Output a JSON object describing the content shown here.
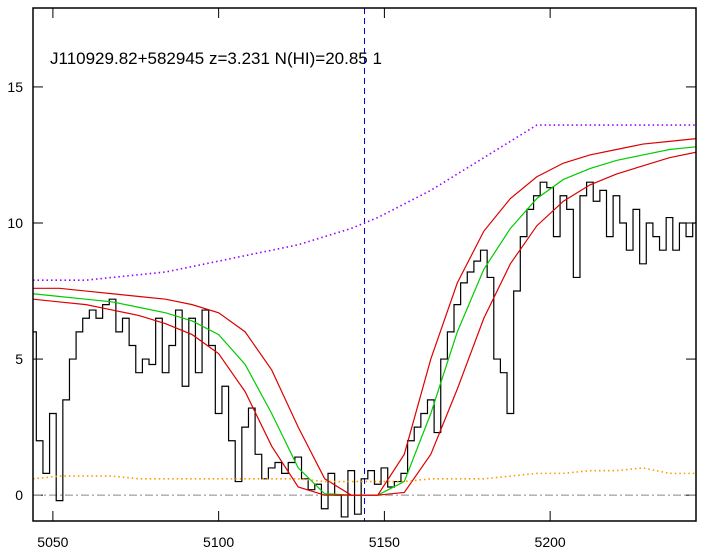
{
  "chart_data": {
    "type": "line",
    "title": "J110929.82+582945 z=3.231 N(HI)=20.85 1",
    "xlim": [
      5044,
      5244
    ],
    "ylim": [
      -0.95,
      17.9
    ],
    "xticks": [
      5050,
      5100,
      5150,
      5200
    ],
    "yticks": [
      0,
      5,
      10,
      15
    ],
    "zero_line": 0,
    "vline": 5144,
    "vline_color": "#0000cc",
    "series": [
      {
        "color": "#000000",
        "style": "step",
        "x": [
          5044,
          5046,
          5048,
          5050,
          5052,
          5054,
          5056,
          5058,
          5060,
          5062,
          5064,
          5066,
          5068,
          5070,
          5072,
          5074,
          5076,
          5078,
          5080,
          5082,
          5084,
          5086,
          5088,
          5090,
          5092,
          5094,
          5096,
          5098,
          5100,
          5102,
          5104,
          5106,
          5108,
          5110,
          5112,
          5114,
          5116,
          5118,
          5120,
          5122,
          5124,
          5126,
          5128,
          5130,
          5132,
          5134,
          5136,
          5138,
          5140,
          5142,
          5144,
          5146,
          5148,
          5150,
          5152,
          5154,
          5156,
          5158,
          5160,
          5162,
          5164,
          5166,
          5168,
          5170,
          5172,
          5174,
          5176,
          5178,
          5180,
          5182,
          5184,
          5186,
          5188,
          5190,
          5192,
          5194,
          5196,
          5198,
          5200,
          5202,
          5204,
          5206,
          5208,
          5210,
          5212,
          5214,
          5216,
          5218,
          5220,
          5222,
          5224,
          5226,
          5228,
          5230,
          5232,
          5234,
          5236,
          5238,
          5240,
          5242,
          5244
        ],
        "values": [
          6.0,
          2.0,
          0.8,
          3.0,
          -0.2,
          3.5,
          5.0,
          6.0,
          6.5,
          6.8,
          6.5,
          7.0,
          7.2,
          6.0,
          6.5,
          5.5,
          4.5,
          5.0,
          4.8,
          6.5,
          4.5,
          5.5,
          6.8,
          4.0,
          6.5,
          4.5,
          6.8,
          5.5,
          3.0,
          4.0,
          2.0,
          0.5,
          2.5,
          3.2,
          1.5,
          0.6,
          1.0,
          1.2,
          0.8,
          1.2,
          1.4,
          0.6,
          0.2,
          0.4,
          -0.5,
          0.8,
          0.0,
          -0.8,
          0.9,
          -0.7,
          0.6,
          0.9,
          0.4,
          1.0,
          0.3,
          0.5,
          0.8,
          2.0,
          2.5,
          3.0,
          3.5,
          2.3,
          5.0,
          6.0,
          7.0,
          7.8,
          8.2,
          8.6,
          9.0,
          8.0,
          5.0,
          4.5,
          3.0,
          7.5,
          9.5,
          10.5,
          11.0,
          11.5,
          11.3,
          9.5,
          11.0,
          10.5,
          8.0,
          11.0,
          11.5,
          10.8,
          11.2,
          9.5,
          11.0,
          10.0,
          9.0,
          10.5,
          8.5,
          10.0,
          9.5,
          9.0,
          10.2,
          9.0,
          10.0,
          9.5,
          10.0
        ]
      },
      {
        "color": "#00cc00",
        "style": "solid",
        "x": [
          5044,
          5052,
          5060,
          5068,
          5076,
          5084,
          5092,
          5100,
          5108,
          5116,
          5124,
          5132,
          5140,
          5148,
          5156,
          5164,
          5172,
          5180,
          5188,
          5196,
          5204,
          5212,
          5220,
          5228,
          5236,
          5244
        ],
        "values": [
          7.4,
          7.3,
          7.2,
          7.1,
          6.9,
          6.7,
          6.4,
          5.9,
          4.8,
          3.0,
          1.0,
          0.05,
          0,
          0,
          0.5,
          3.0,
          6.0,
          8.3,
          9.8,
          10.9,
          11.6,
          12.0,
          12.3,
          12.5,
          12.7,
          12.8
        ]
      },
      {
        "color": "#dd0000",
        "style": "solid",
        "x": [
          5044,
          5052,
          5060,
          5068,
          5076,
          5084,
          5092,
          5100,
          5108,
          5116,
          5124,
          5132,
          5140,
          5148,
          5156,
          5164,
          5172,
          5180,
          5188,
          5196,
          5204,
          5212,
          5220,
          5228,
          5236,
          5244
        ],
        "values": [
          7.6,
          7.6,
          7.5,
          7.4,
          7.3,
          7.2,
          7.0,
          6.7,
          6.0,
          4.6,
          2.5,
          0.6,
          0,
          0,
          1.5,
          5.0,
          7.8,
          9.7,
          10.9,
          11.7,
          12.2,
          12.5,
          12.7,
          12.9,
          13.0,
          13.1
        ]
      },
      {
        "color": "#dd0000",
        "style": "solid",
        "x": [
          5044,
          5052,
          5060,
          5068,
          5076,
          5084,
          5092,
          5100,
          5108,
          5116,
          5124,
          5132,
          5140,
          5148,
          5156,
          5164,
          5172,
          5180,
          5188,
          5196,
          5204,
          5212,
          5220,
          5228,
          5236,
          5244
        ],
        "values": [
          7.2,
          7.1,
          7.0,
          6.8,
          6.6,
          6.3,
          5.9,
          5.2,
          3.8,
          1.8,
          0.3,
          0,
          0,
          0,
          0.1,
          1.5,
          3.9,
          6.5,
          8.5,
          9.9,
          10.8,
          11.4,
          11.8,
          12.1,
          12.4,
          12.6
        ]
      },
      {
        "color": "#9900ff",
        "style": "dotted",
        "x": [
          5044,
          5052,
          5060,
          5068,
          5076,
          5084,
          5092,
          5100,
          5108,
          5116,
          5124,
          5132,
          5140,
          5148,
          5156,
          5164,
          5172,
          5180,
          5188,
          5196,
          5204,
          5212,
          5220,
          5228,
          5236,
          5244
        ],
        "values": [
          7.9,
          7.9,
          7.9,
          8.0,
          8.1,
          8.2,
          8.4,
          8.6,
          8.8,
          9.0,
          9.2,
          9.5,
          9.8,
          10.2,
          10.7,
          11.2,
          11.8,
          12.4,
          13.0,
          13.6,
          13.6,
          13.6,
          13.6,
          13.6,
          13.6,
          13.6
        ]
      },
      {
        "color": "#ff9900",
        "style": "dotted",
        "x": [
          5044,
          5052,
          5060,
          5068,
          5076,
          5084,
          5092,
          5100,
          5108,
          5116,
          5124,
          5132,
          5140,
          5148,
          5156,
          5164,
          5172,
          5180,
          5188,
          5196,
          5204,
          5212,
          5220,
          5228,
          5236,
          5244
        ],
        "values": [
          0.6,
          0.7,
          0.7,
          0.7,
          0.6,
          0.6,
          0.6,
          0.6,
          0.6,
          0.6,
          0.6,
          0.5,
          0.5,
          0.5,
          0.5,
          0.6,
          0.6,
          0.6,
          0.7,
          0.8,
          0.8,
          0.9,
          0.9,
          1.0,
          0.8,
          0.8
        ]
      }
    ]
  }
}
